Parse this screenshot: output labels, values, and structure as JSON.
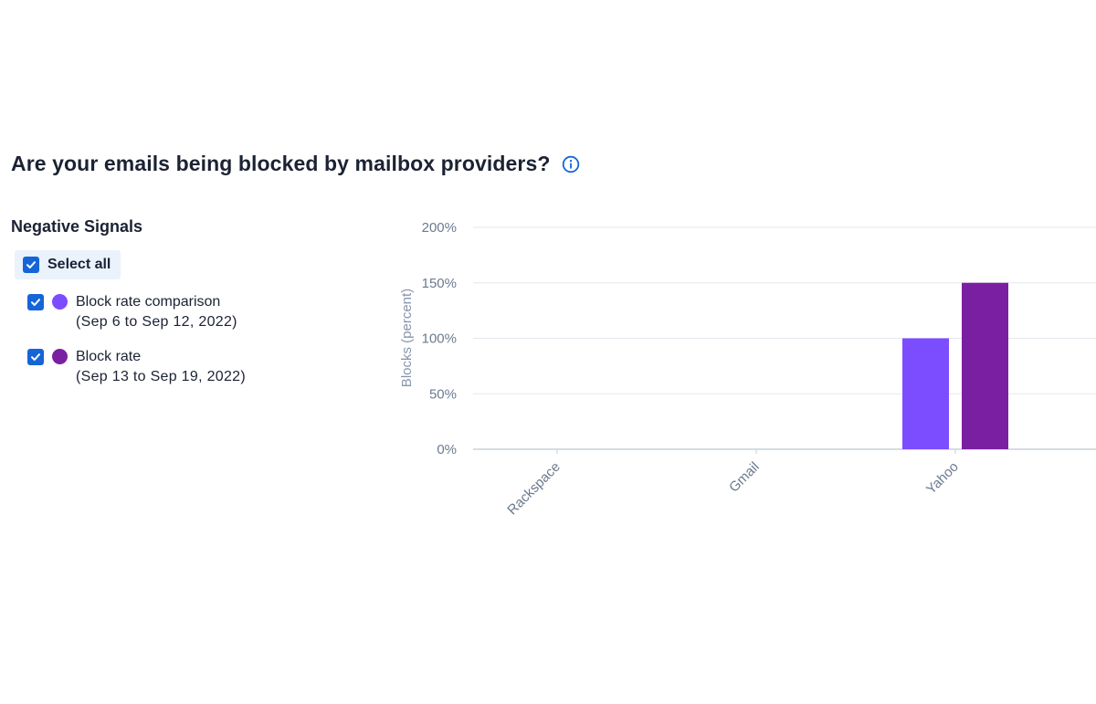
{
  "section": {
    "title": "Are your emails being blocked by mailbox providers?",
    "info_icon": "info-circle-icon"
  },
  "signals": {
    "title": "Negative Signals",
    "select_all_label": "Select all",
    "items": [
      {
        "name": "Block rate comparison",
        "range": "(Sep 6 to Sep 12, 2022)",
        "color": "#7c4dff",
        "checked": true
      },
      {
        "name": "Block rate",
        "range": "(Sep 13 to Sep 19, 2022)",
        "color": "#7b1fa2",
        "checked": true
      }
    ]
  },
  "colors": {
    "accent": "#1565d8",
    "heading": "#1b2233",
    "info_icon": "#1565d8"
  },
  "chart_data": {
    "type": "bar",
    "categories": [
      "Rackspace",
      "Gmail",
      "Yahoo"
    ],
    "series": [
      {
        "name": "Block rate comparison",
        "color": "#7c4dff",
        "values": [
          0,
          0,
          100
        ]
      },
      {
        "name": "Block rate",
        "color": "#7b1fa2",
        "values": [
          0,
          0,
          150
        ]
      }
    ],
    "ylabel": "Blocks (percent)",
    "yticks": [
      "200%",
      "150%",
      "100%",
      "50%",
      "0%"
    ],
    "ylim": [
      0,
      200
    ],
    "grid": true
  }
}
